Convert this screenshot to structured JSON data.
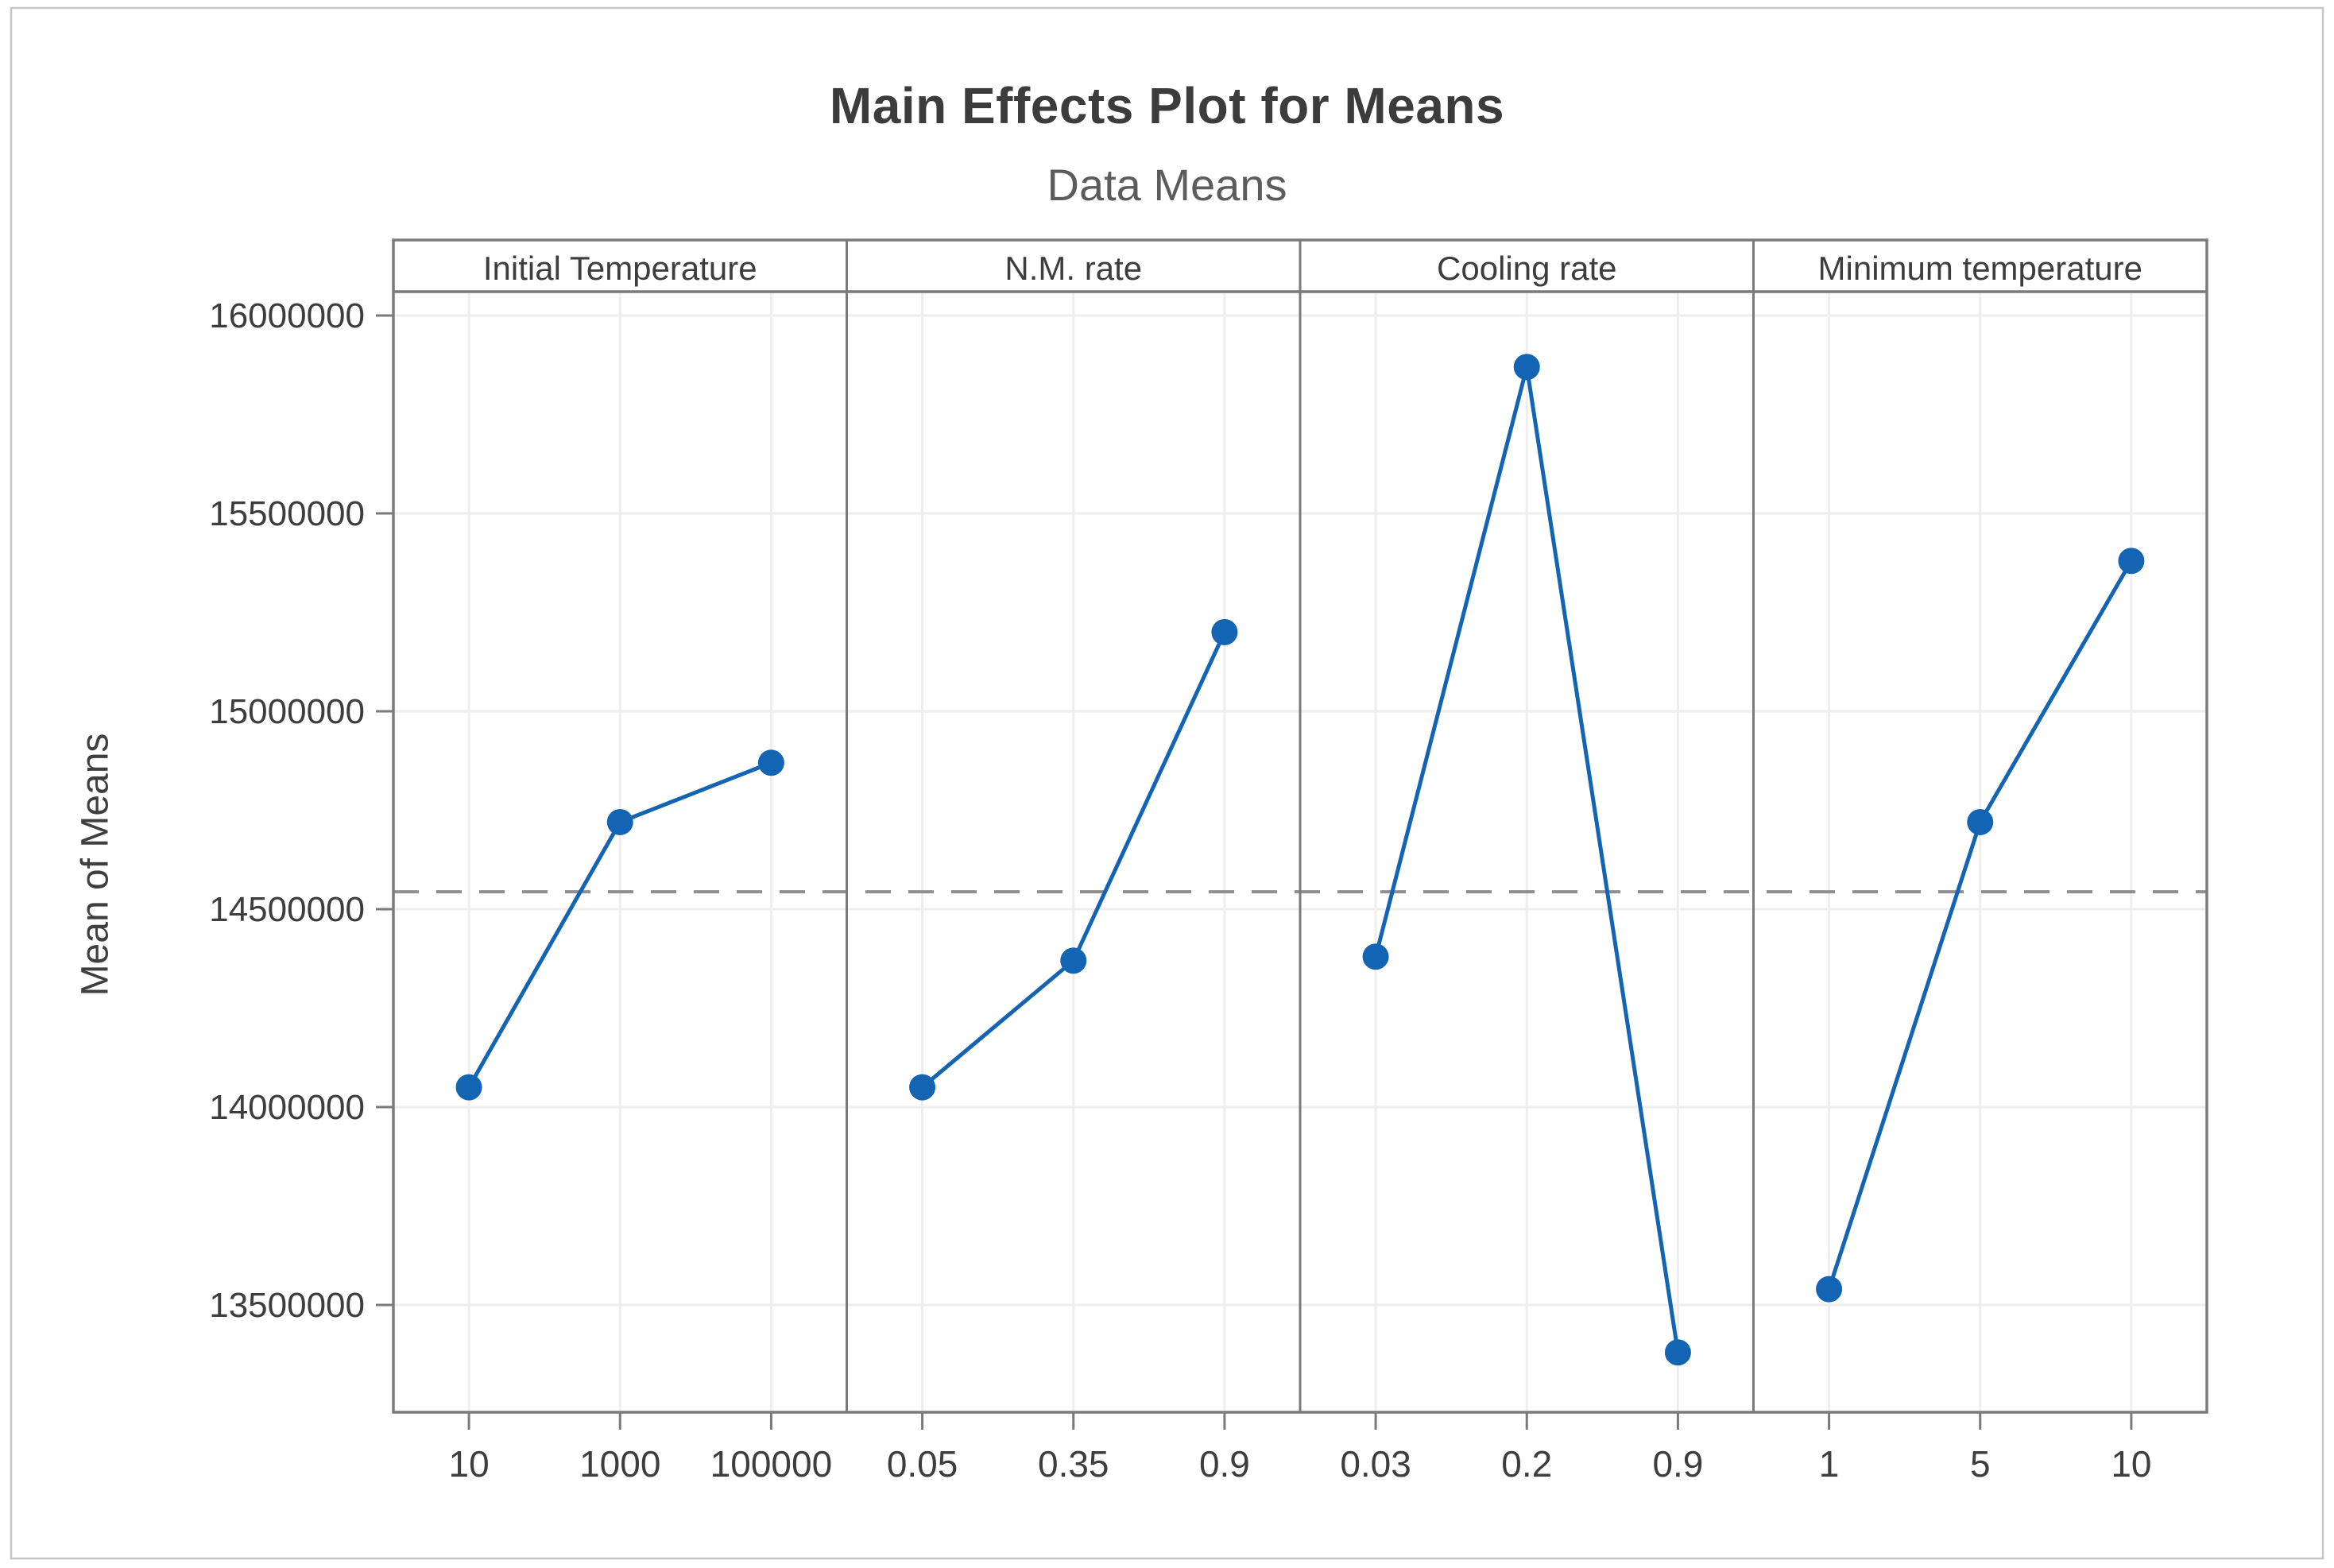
{
  "figure": {
    "title": "Main Effects Plot for Means",
    "subtitle": "Data Means",
    "y_axis_label": "Mean of Means"
  },
  "chart_data": {
    "type": "line",
    "title": "Main Effects Plot for Means",
    "subtitle": "Data Means",
    "ylabel": "Mean of Means",
    "ylim": [
      13230000,
      16060000
    ],
    "y_ticks": [
      16000000,
      15500000,
      15000000,
      14500000,
      14000000,
      13500000
    ],
    "grid": true,
    "legend_position": "none",
    "reference_line": 14544000,
    "reference_line_style": "dashed",
    "marker": "circle",
    "panels": [
      {
        "factor": "Initial Temperature",
        "categories": [
          "10",
          "1000",
          "100000"
        ],
        "values": [
          14050000,
          14720000,
          14870000
        ]
      },
      {
        "factor": "N.M. rate",
        "categories": [
          "0.05",
          "0.35",
          "0.9"
        ],
        "values": [
          14050000,
          14370000,
          15200000
        ]
      },
      {
        "factor": "Cooling rate",
        "categories": [
          "0.03",
          "0.2",
          "0.9"
        ],
        "values": [
          14380000,
          15870000,
          13380000
        ]
      },
      {
        "factor": "Minimum temperature",
        "categories": [
          "1",
          "5",
          "10"
        ],
        "values": [
          13540000,
          14720000,
          15380000
        ]
      }
    ]
  },
  "colors": {
    "series": "#1464b4",
    "frame": "#7a7a7a",
    "grid": "#eeeeee",
    "reference": "#8f8f8f",
    "tick_text": "#3d3d3d",
    "header_text": "#3d3d3d",
    "title_text": "#3c3c3c",
    "subtitle_text": "#5c5c5c",
    "border": "#c6c6c6",
    "background": "#ffffff"
  }
}
